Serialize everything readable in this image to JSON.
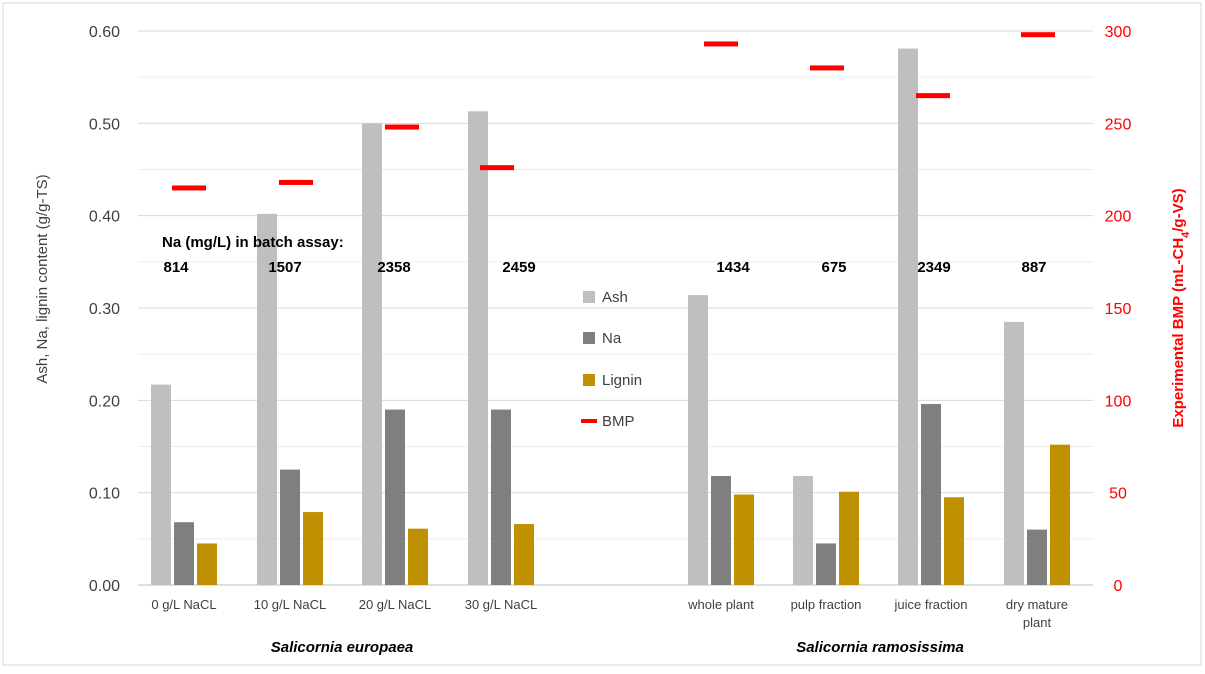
{
  "chart_data": {
    "type": "bar",
    "categories": [
      [
        "0 g/L  NaCL"
      ],
      [
        "10 g/L NaCL"
      ],
      [
        "20 g/L NaCL"
      ],
      [
        "30 g/L NaCL"
      ],
      [
        "whole plant"
      ],
      [
        "pulp fraction"
      ],
      [
        "juice fraction"
      ],
      [
        "dry mature",
        "plant"
      ]
    ],
    "groups": [
      {
        "label": "Salicornia europaea",
        "categories": [
          0,
          1,
          2,
          3
        ]
      },
      {
        "label": "Salicornia ramosissima",
        "categories": [
          4,
          5,
          6,
          7
        ]
      }
    ],
    "series": [
      {
        "name": "Ash",
        "axis": "left",
        "kind": "bar",
        "color": "#bfbfbf",
        "values": [
          0.217,
          0.402,
          0.5,
          0.513,
          0.314,
          0.118,
          0.581,
          0.285
        ]
      },
      {
        "name": "Na",
        "axis": "left",
        "kind": "bar",
        "color": "#7f7f7f",
        "values": [
          0.068,
          0.125,
          0.19,
          0.19,
          0.118,
          0.045,
          0.196,
          0.06
        ]
      },
      {
        "name": "Lignin",
        "axis": "left",
        "kind": "bar",
        "color": "#bf9000",
        "values": [
          0.045,
          0.079,
          0.061,
          0.066,
          0.098,
          0.101,
          0.095,
          0.152
        ]
      },
      {
        "name": "BMP",
        "axis": "right",
        "kind": "marker",
        "color": "#ff0000",
        "values": [
          215,
          218,
          248,
          226,
          293,
          280,
          265,
          298
        ]
      }
    ],
    "annotation_title": "Na (mg/L) in batch assay:",
    "na_batch_values": [
      "814",
      "1507",
      "2358",
      "2459",
      "1434",
      "675",
      "2349",
      "887"
    ],
    "ylabel_left": "Ash, Na, lignin content (g/g-TS)",
    "ylabel_right_parts": [
      "Experimental BMP (mL-CH",
      "4",
      "/g-VS)"
    ],
    "ylim_left": [
      0,
      0.6
    ],
    "yticks_left": [
      "0.00",
      "0.10",
      "0.20",
      "0.30",
      "0.40",
      "0.50",
      "0.60"
    ],
    "ylim_right": [
      0,
      300
    ],
    "yticks_right": [
      "0",
      "50",
      "100",
      "150",
      "200",
      "250",
      "300"
    ],
    "grid": true,
    "legend_position": "center",
    "colors": {
      "axis_text": "#404040",
      "right_axis": "#ff0000",
      "grid": "#d9d9d9"
    }
  }
}
